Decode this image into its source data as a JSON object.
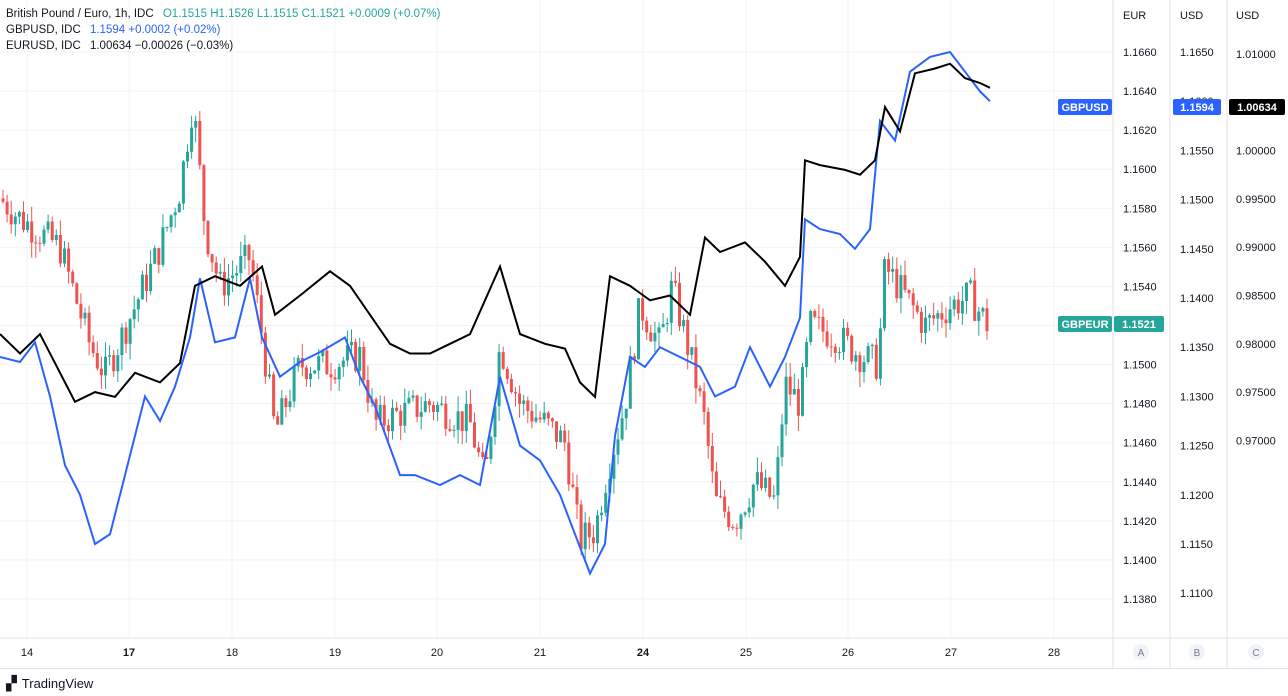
{
  "legend": {
    "main": {
      "symbol": "British Pound / Euro, 1h, IDC",
      "o": "O1.1515",
      "h": "H1.1526",
      "l": "L1.1515",
      "c": "C1.1521",
      "chg": "+0.0009 (+0.07%)"
    },
    "s1": {
      "symbol": "GBPUSD, IDC",
      "last": "1.1594",
      "chg": "+0.0002 (+0.02%)"
    },
    "s2": {
      "symbol": "EURUSD, IDC",
      "last": "1.00634",
      "chg": "−0.00026 (−0.03%)"
    }
  },
  "scales": {
    "eur": {
      "title": "EUR",
      "ticks": [
        "1.1660",
        "1.1640",
        "1.1620",
        "1.1600",
        "1.1580",
        "1.1560",
        "1.1540",
        "1.1520",
        "1.1500",
        "1.1480",
        "1.1460",
        "1.1440",
        "1.1420",
        "1.1400",
        "1.1380"
      ],
      "button": "A"
    },
    "usd1": {
      "title": "USD",
      "ticks": [
        "1.1650",
        "1.1600",
        "1.1550",
        "1.1500",
        "1.1450",
        "1.1400",
        "1.1350",
        "1.1300",
        "1.1250",
        "1.1200",
        "1.1150",
        "1.1100"
      ],
      "button": "B"
    },
    "usd2": {
      "title": "USD",
      "ticks": [
        "1.01000",
        "1.00500",
        "1.00000",
        "0.99500",
        "0.99000",
        "0.98500",
        "0.98000",
        "0.97500",
        "0.97000"
      ],
      "button": "C"
    }
  },
  "labels": {
    "gbpusd_tag": "GBPUSD",
    "gbpusd_price": "1.1594",
    "eurusd_price": "1.00634",
    "gbpeur_tag": "GBPEUR",
    "gbpeur_price": "1.1521"
  },
  "x_ticks": [
    "14",
    "17",
    "18",
    "19",
    "20",
    "21",
    "24",
    "25",
    "26",
    "27",
    "28"
  ],
  "brand": "TradingView",
  "colors": {
    "up": "#26a69a",
    "down": "#ef5350",
    "gbpusd": "#2962ff",
    "eurusd": "#000000",
    "gbpeur_tag": "#26a69a"
  },
  "chart_data": {
    "type": "line",
    "x": [
      "14",
      "17",
      "18",
      "19",
      "20",
      "21",
      "24",
      "25",
      "26",
      "27"
    ],
    "series": [
      {
        "name": "GBPEUR",
        "scale": "EUR",
        "values": [
          1.1575,
          1.152,
          1.153,
          1.15,
          1.148,
          1.144,
          1.1515,
          1.1425,
          1.151,
          1.1521
        ]
      },
      {
        "name": "GBPUSD",
        "scale": "USD",
        "values": [
          1.135,
          1.12,
          1.136,
          1.138,
          1.125,
          1.118,
          1.136,
          1.133,
          1.147,
          1.1594
        ]
      },
      {
        "name": "EURUSD",
        "scale": "USD",
        "values": [
          0.979,
          0.974,
          0.9865,
          0.983,
          0.978,
          0.974,
          0.988,
          0.987,
          0.9955,
          1.00634
        ]
      }
    ],
    "ylim_eur": [
      1.137,
      1.167
    ],
    "ylim_usd": [
      1.108,
      1.167
    ],
    "ylim_usd2": [
      0.969,
      1.012
    ],
    "grid": true
  }
}
